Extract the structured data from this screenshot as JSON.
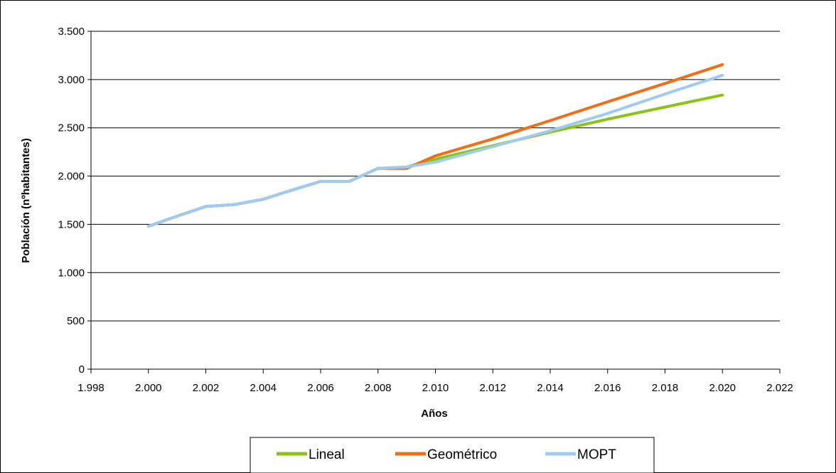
{
  "chart_data": {
    "type": "line",
    "title": "",
    "xlabel": "Años",
    "ylabel": "Población (nºhabitantes)",
    "xlim": [
      1998,
      2022
    ],
    "ylim": [
      0,
      3500
    ],
    "x_ticks": [
      1998,
      2000,
      2002,
      2004,
      2006,
      2008,
      2010,
      2012,
      2014,
      2016,
      2018,
      2020,
      2022
    ],
    "x_tick_labels": [
      "1.998",
      "2.000",
      "2.002",
      "2.004",
      "2.006",
      "2.008",
      "2.010",
      "2.012",
      "2.014",
      "2.016",
      "2.018",
      "2.020",
      "2.022"
    ],
    "y_ticks": [
      0,
      500,
      1000,
      1500,
      2000,
      2500,
      3000,
      3500
    ],
    "y_tick_labels": [
      "0",
      "500",
      "1.000",
      "1.500",
      "2.000",
      "2.500",
      "3.000",
      "3.500"
    ],
    "grid": "horizontal",
    "legend_position": "bottom",
    "series": [
      {
        "name": "Lineal",
        "color": "#8cc413",
        "x": [
          2000,
          2001,
          2002,
          2003,
          2004,
          2005,
          2006,
          2007,
          2008,
          2009,
          2010,
          2012,
          2014,
          2016,
          2018,
          2020
        ],
        "values": [
          1480,
          1585,
          1685,
          1705,
          1760,
          1855,
          1945,
          1945,
          2080,
          2095,
          2175,
          2315,
          2455,
          2590,
          2715,
          2840
        ]
      },
      {
        "name": "Geométrico",
        "color": "#f26d14",
        "x": [
          2000,
          2001,
          2002,
          2003,
          2004,
          2005,
          2006,
          2007,
          2008,
          2009,
          2010,
          2012,
          2014,
          2016,
          2018,
          2020
        ],
        "values": [
          1480,
          1585,
          1685,
          1705,
          1760,
          1855,
          1945,
          1945,
          2080,
          2080,
          2210,
          2385,
          2575,
          2770,
          2960,
          3155
        ]
      },
      {
        "name": "MOPT",
        "color": "#9ecbf2",
        "x": [
          2000,
          2001,
          2002,
          2003,
          2004,
          2005,
          2006,
          2007,
          2008,
          2009,
          2010,
          2012,
          2014,
          2016,
          2018,
          2020
        ],
        "values": [
          1480,
          1585,
          1685,
          1705,
          1760,
          1855,
          1945,
          1945,
          2080,
          2095,
          2145,
          2305,
          2470,
          2650,
          2850,
          3045
        ]
      }
    ]
  }
}
